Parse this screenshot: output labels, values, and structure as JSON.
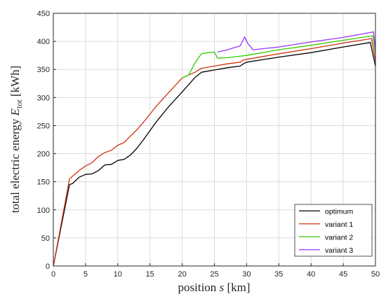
{
  "chart_data": {
    "type": "line",
    "xlabel": "position s [km]",
    "xlabel_parts": {
      "prefix": "position ",
      "var": "s",
      "suffix": " [km]"
    },
    "ylabel": "total electric energy E_tot [kWh]",
    "ylabel_parts": {
      "prefix": "total electric energy ",
      "var": "E",
      "sub": "tot",
      "suffix": " [kWh]"
    },
    "xlim": [
      0,
      50
    ],
    "ylim": [
      0,
      450
    ],
    "xticks": [
      0,
      5,
      10,
      15,
      20,
      25,
      30,
      35,
      40,
      45,
      50
    ],
    "yticks": [
      0,
      50,
      100,
      150,
      200,
      250,
      300,
      350,
      400,
      450
    ],
    "grid": true,
    "legend_position": "bottom-right",
    "series": [
      {
        "name": "optimum",
        "color": "#000000",
        "x": [
          0,
          2.5,
          3,
          4,
          5,
          6,
          7,
          8,
          9,
          10,
          11,
          12,
          13,
          14,
          16,
          18,
          20,
          21,
          22,
          23,
          25,
          27,
          29,
          29.5,
          30,
          35,
          40,
          45,
          49.2,
          50
        ],
        "y": [
          0,
          145,
          147,
          158,
          163,
          164,
          170,
          180,
          181,
          188,
          190,
          198,
          210,
          225,
          257,
          285,
          310,
          323,
          336,
          345,
          349,
          353,
          356,
          360,
          363,
          372,
          380,
          390,
          398,
          356
        ]
      },
      {
        "name": "variant 1",
        "color": "#cc3311",
        "x": [
          0,
          2.5,
          3,
          4,
          5,
          6,
          7,
          8,
          9,
          10,
          11,
          12,
          13,
          14,
          16,
          18,
          20,
          21,
          22,
          23,
          25,
          27,
          29,
          29.5,
          30,
          35,
          40,
          45,
          49.4,
          50
        ],
        "y": [
          0,
          155,
          160,
          170,
          178,
          184,
          195,
          202,
          206,
          215,
          220,
          232,
          243,
          256,
          285,
          310,
          335,
          340,
          345,
          352,
          356,
          360,
          363,
          367,
          368,
          378,
          387,
          397,
          405,
          365
        ]
      },
      {
        "name": "variant 2",
        "color": "#33cc00",
        "x": [
          20,
          21,
          22,
          23,
          24,
          25,
          25.5,
          27,
          30,
          35,
          40,
          45,
          49.6,
          50
        ],
        "y": [
          335,
          340,
          362,
          378,
          380,
          381,
          370,
          371,
          375,
          385,
          393,
          402,
          410,
          378
        ]
      },
      {
        "name": "variant 3",
        "color": "#9933ff",
        "x": [
          25.5,
          27,
          29,
          29.7,
          30.2,
          31,
          35,
          40,
          45,
          49.7,
          50
        ],
        "y": [
          381,
          385,
          392,
          408,
          396,
          385,
          390,
          399,
          407,
          417,
          385
        ]
      }
    ]
  }
}
